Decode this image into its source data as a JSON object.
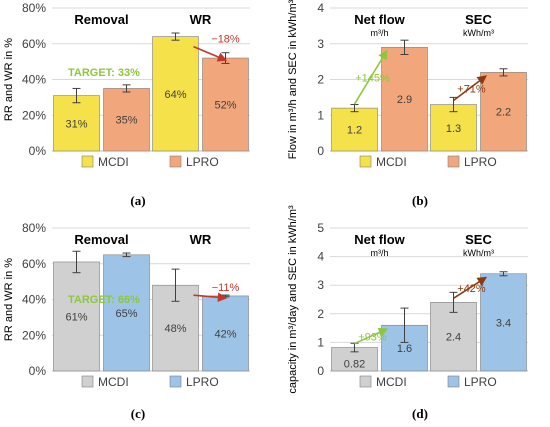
{
  "chart_data": [
    {
      "type": "bar",
      "panel": "(a)",
      "ylabel": "RR and WR in %",
      "ylim": [
        0,
        80
      ],
      "yticks": [
        "0%",
        "20%",
        "40%",
        "60%",
        "80%"
      ],
      "grid": true,
      "groups": [
        {
          "label": "Removal",
          "unit": ""
        },
        {
          "label": "WR",
          "unit": ""
        }
      ],
      "series": [
        {
          "name": "MCDI",
          "color": "#f5e14a",
          "values": [
            31,
            64
          ],
          "errors": [
            4,
            2
          ],
          "labels": [
            "31%",
            "64%"
          ]
        },
        {
          "name": "LPRO",
          "color": "#f2a67c",
          "values": [
            35,
            52
          ],
          "errors": [
            2,
            3
          ],
          "labels": [
            "35%",
            "52%"
          ]
        }
      ],
      "target": {
        "text": "TARGET: 33%",
        "color": "#8ec63f"
      },
      "change": {
        "text": "−18%",
        "color": "#c0392b"
      },
      "caption": "(a)"
    },
    {
      "type": "bar",
      "panel": "(b)",
      "ylabel": "Flow in m³/h and SEC in kWh/m³",
      "ylim": [
        0,
        4
      ],
      "yticks": [
        "0",
        "1",
        "2",
        "3",
        "4"
      ],
      "grid": true,
      "groups": [
        {
          "label": "Net flow",
          "unit": "m³/h"
        },
        {
          "label": "SEC",
          "unit": "kWh/m³"
        }
      ],
      "series": [
        {
          "name": "MCDI",
          "color": "#f5e14a",
          "values": [
            1.2,
            1.3
          ],
          "errors": [
            0.1,
            0.2
          ],
          "labels": [
            "1.2",
            "1.3"
          ]
        },
        {
          "name": "LPRO",
          "color": "#f2a67c",
          "values": [
            2.9,
            2.2
          ],
          "errors": [
            0.2,
            0.1
          ],
          "labels": [
            "2.9",
            "2.2"
          ]
        }
      ],
      "changes": [
        {
          "text": "+145%",
          "color": "#8ec63f"
        },
        {
          "text": "+71%",
          "color": "#8b3a10"
        }
      ],
      "caption": "(b)"
    },
    {
      "type": "bar",
      "panel": "(c)",
      "ylabel": "RR and WR in %",
      "ylim": [
        0,
        80
      ],
      "yticks": [
        "0%",
        "20%",
        "40%",
        "60%",
        "80%"
      ],
      "grid": true,
      "groups": [
        {
          "label": "Removal",
          "unit": ""
        },
        {
          "label": "WR",
          "unit": ""
        }
      ],
      "series": [
        {
          "name": "MCDI",
          "color": "#d0d0d0",
          "values": [
            61,
            48
          ],
          "errors": [
            6,
            9
          ],
          "labels": [
            "61%",
            "48%"
          ]
        },
        {
          "name": "LPRO",
          "color": "#9dc3e6",
          "values": [
            65,
            42
          ],
          "errors": [
            1,
            0.5
          ],
          "labels": [
            "65%",
            "42%"
          ]
        }
      ],
      "target": {
        "text": "TARGET: 66%",
        "color": "#8ec63f"
      },
      "change": {
        "text": "−11%",
        "color": "#c0392b"
      },
      "caption": "(c)"
    },
    {
      "type": "bar",
      "panel": "(d)",
      "ylabel": "capacity in m³/day and SEC in kWh/m³",
      "ylim": [
        0,
        5
      ],
      "yticks": [
        "0",
        "1",
        "2",
        "3",
        "4",
        "5"
      ],
      "grid": true,
      "groups": [
        {
          "label": "Net flow",
          "unit": "m³/h"
        },
        {
          "label": "SEC",
          "unit": "kWh/m³"
        }
      ],
      "series": [
        {
          "name": "MCDI",
          "color": "#d0d0d0",
          "values": [
            0.82,
            2.4
          ],
          "errors": [
            0.15,
            0.35
          ],
          "labels": [
            "0.82",
            "2.4"
          ]
        },
        {
          "name": "LPRO",
          "color": "#9dc3e6",
          "values": [
            1.6,
            3.4
          ],
          "errors": [
            0.6,
            0.07
          ],
          "labels": [
            "1.6",
            "3.4"
          ]
        }
      ],
      "changes": [
        {
          "text": "+93%",
          "color": "#8ec63f"
        },
        {
          "text": "+42%",
          "color": "#8b3a10"
        }
      ],
      "caption": "(d)"
    }
  ]
}
